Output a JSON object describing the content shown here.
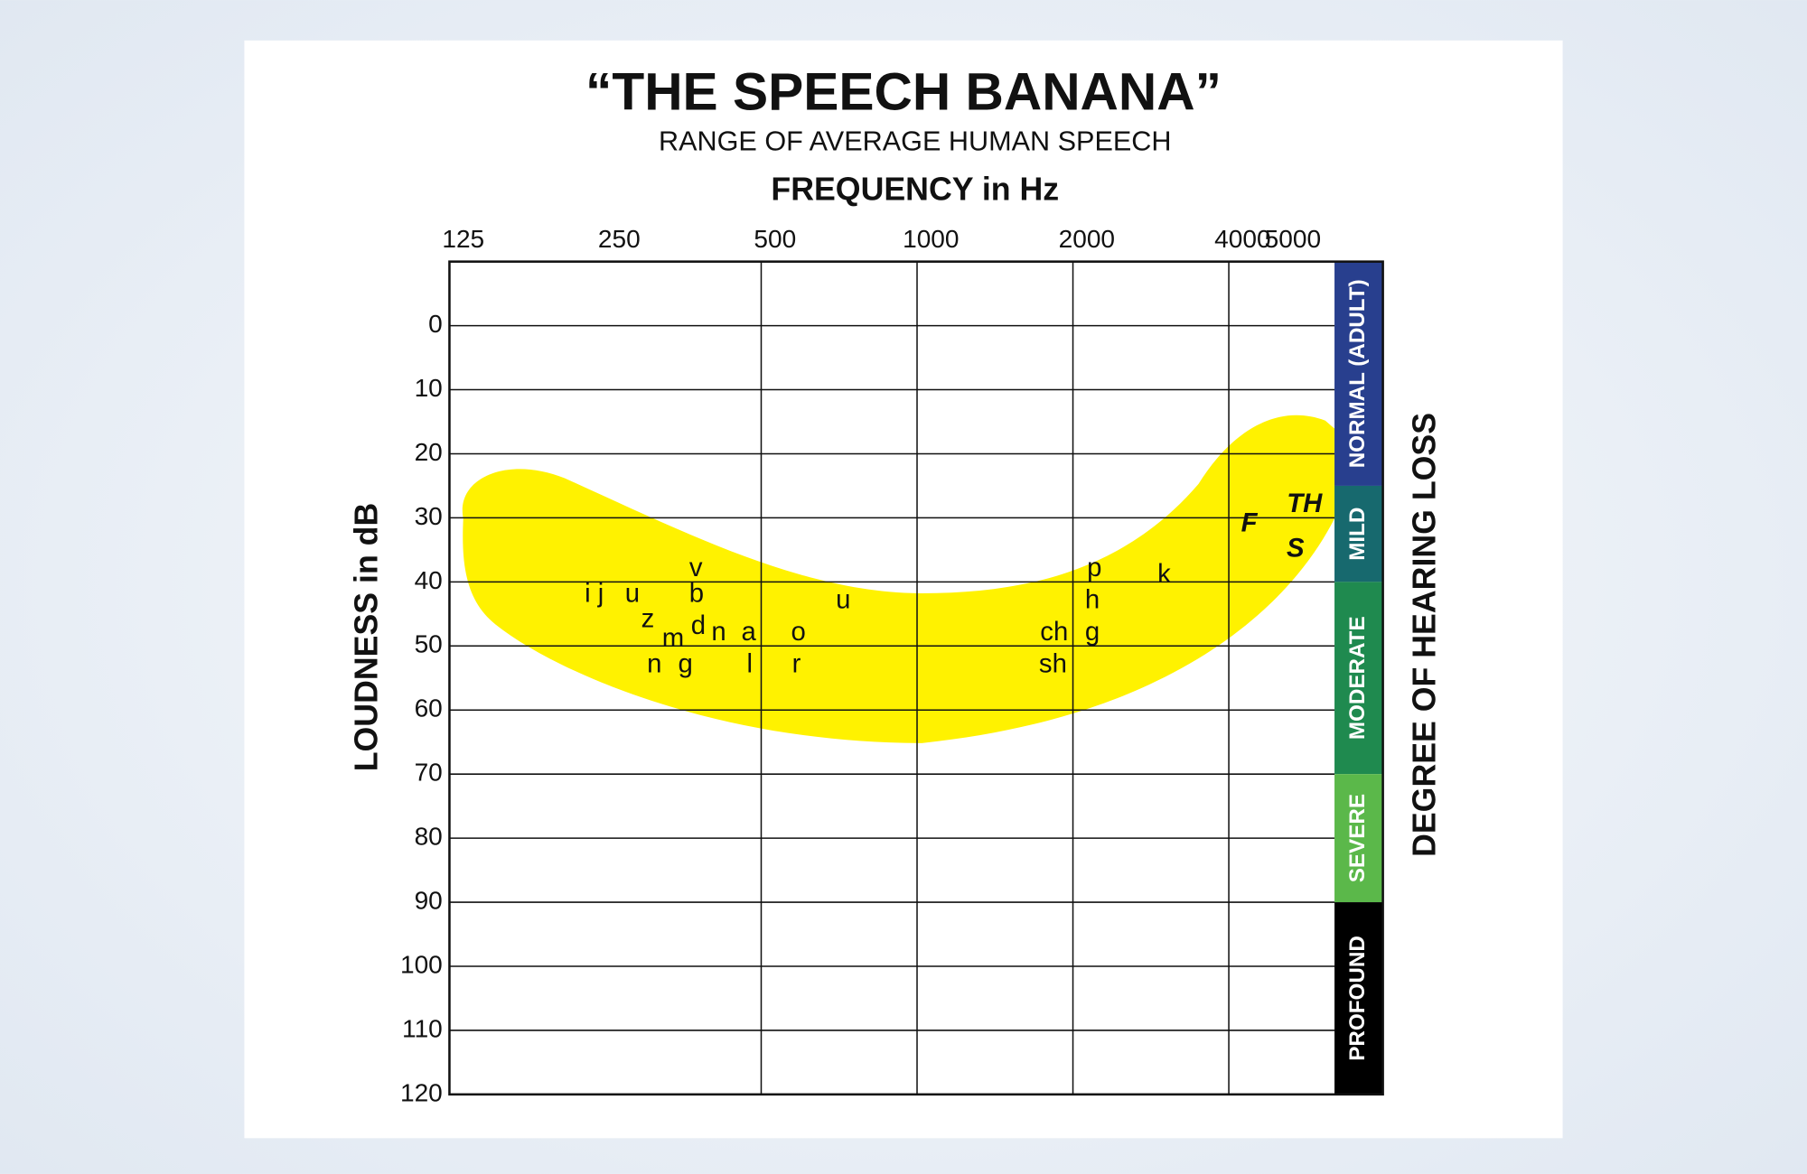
{
  "chart_data": {
    "type": "audiogram",
    "title": "“THE SPEECH BANANA”",
    "subtitle": "RANGE OF AVERAGE HUMAN SPEECH",
    "x_label": "FREQUENCY in Hz",
    "y_label": "LOUDNESS in dB",
    "y2_label": "DEGREE OF HEARING LOSS",
    "xscale": "log",
    "xlim": [
      125,
      6400
    ],
    "xticks": [
      125,
      250,
      500,
      1000,
      2000,
      4000,
      5000
    ],
    "xgrid": [
      500,
      1000,
      2000,
      4000
    ],
    "ylim": [
      -10,
      120
    ],
    "yticks": [
      0,
      10,
      20,
      30,
      40,
      50,
      60,
      70,
      80,
      90,
      100,
      110,
      120
    ],
    "grid": true,
    "banana_color": "#fff200",
    "phonemes": [
      {
        "label": "i j",
        "x": 238,
        "y": 42
      },
      {
        "label": "u",
        "x": 282,
        "y": 42
      },
      {
        "label": "z",
        "x": 302,
        "y": 46
      },
      {
        "label": "v",
        "x": 374,
        "y": 38
      },
      {
        "label": "b",
        "x": 375,
        "y": 42
      },
      {
        "label": "d",
        "x": 378,
        "y": 47
      },
      {
        "label": "m",
        "x": 338,
        "y": 49
      },
      {
        "label": "n",
        "x": 414,
        "y": 48
      },
      {
        "label": "a",
        "x": 473,
        "y": 48
      },
      {
        "label": "n",
        "x": 311,
        "y": 53
      },
      {
        "label": "g",
        "x": 357,
        "y": 53
      },
      {
        "label": "l",
        "x": 475,
        "y": 53
      },
      {
        "label": "o",
        "x": 590,
        "y": 48
      },
      {
        "label": "r",
        "x": 585,
        "y": 53
      },
      {
        "label": "u",
        "x": 720,
        "y": 43
      },
      {
        "label": "ch",
        "x": 1840,
        "y": 48
      },
      {
        "label": "sh",
        "x": 1830,
        "y": 53
      },
      {
        "label": "p",
        "x": 2200,
        "y": 38
      },
      {
        "label": "h",
        "x": 2180,
        "y": 43
      },
      {
        "label": "g",
        "x": 2180,
        "y": 48
      },
      {
        "label": "k",
        "x": 3000,
        "y": 39
      },
      {
        "label": "F",
        "x": 4380,
        "y": 31,
        "emphasis": true
      },
      {
        "label": "TH",
        "x": 5600,
        "y": 28,
        "emphasis": true
      },
      {
        "label": "S",
        "x": 5380,
        "y": 35,
        "emphasis": true
      }
    ],
    "bands": [
      {
        "name": "NORMAL (ADULT)",
        "from": -10,
        "to": 25,
        "color": "#283f8e"
      },
      {
        "name": "MILD",
        "from": 25,
        "to": 40,
        "color": "#17696e"
      },
      {
        "name": "MODERATE",
        "from": 40,
        "to": 70,
        "color": "#1f8a4f"
      },
      {
        "name": "SEVERE",
        "from": 70,
        "to": 90,
        "color": "#5bb84a"
      },
      {
        "name": "PROFOUND",
        "from": 90,
        "to": 120,
        "color": "#000000"
      }
    ]
  }
}
